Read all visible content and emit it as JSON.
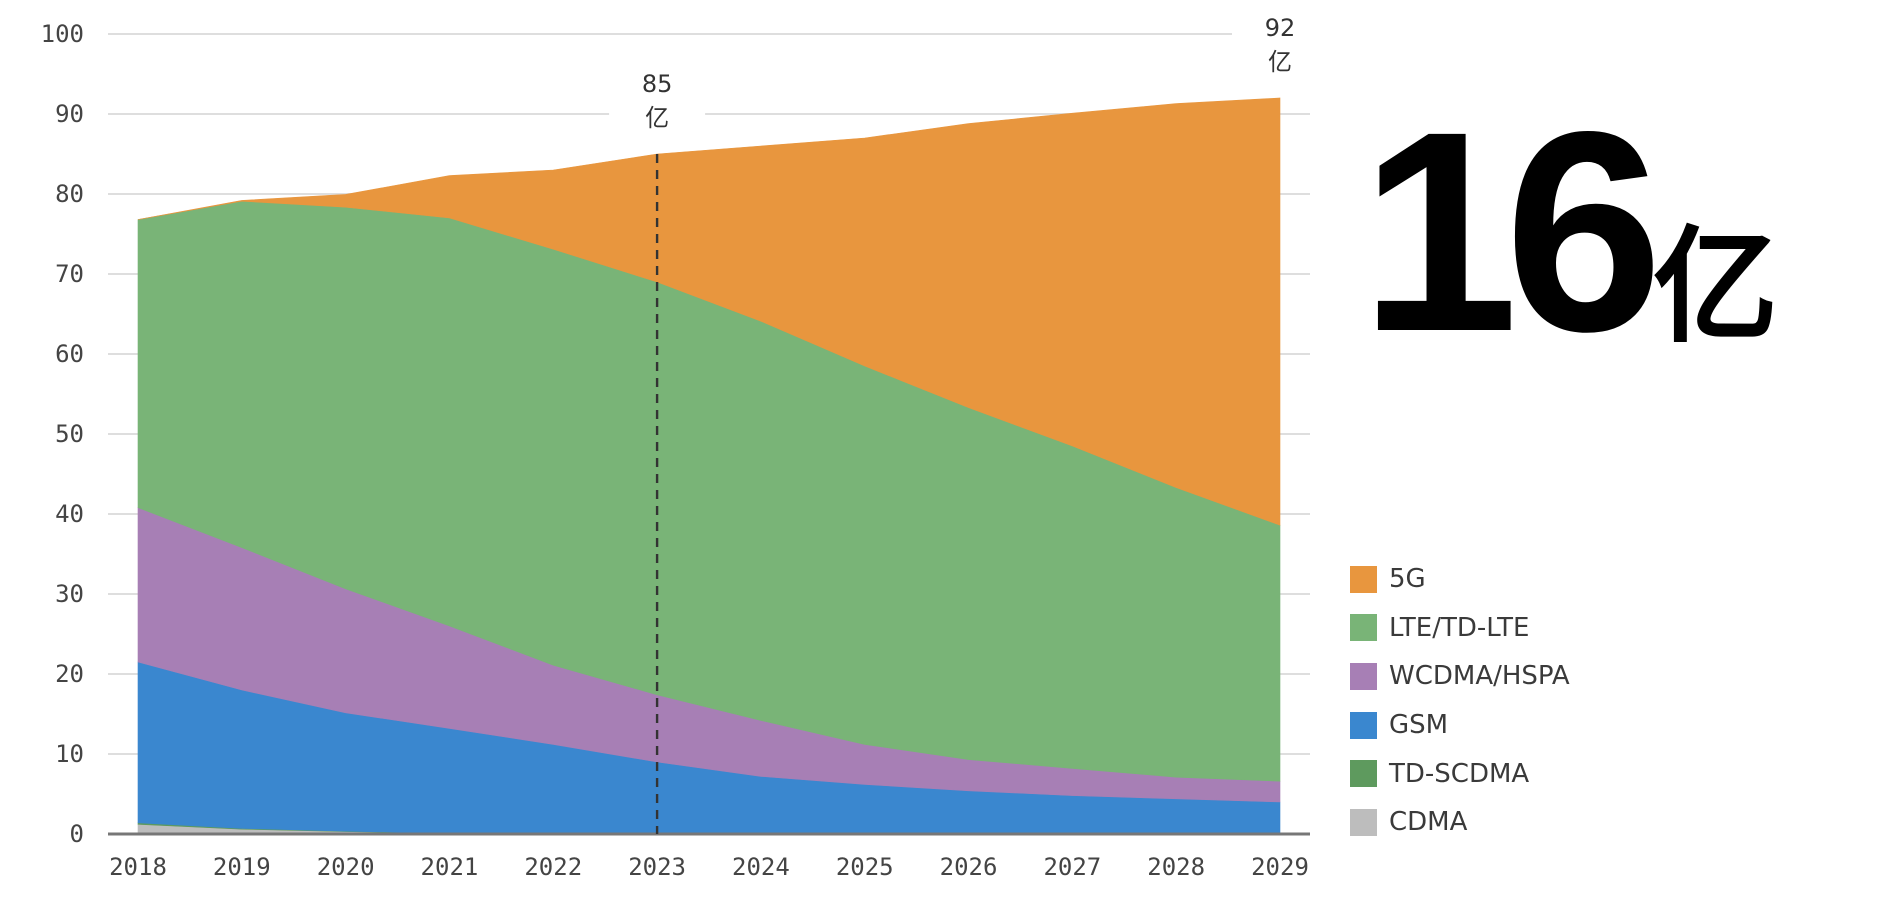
{
  "chart_data": {
    "type": "area",
    "stacked": true,
    "x": [
      2018,
      2019,
      2020,
      2021,
      2022,
      2023,
      2024,
      2025,
      2026,
      2027,
      2028,
      2029
    ],
    "ylim": [
      0,
      100
    ],
    "yticks": [
      0,
      10,
      20,
      30,
      40,
      50,
      60,
      70,
      80,
      90,
      100
    ],
    "series": [
      {
        "name": "CDMA",
        "color": "#bdbdbd",
        "values": [
          1.2,
          0.6,
          0.3,
          0.1,
          0.1,
          0,
          0,
          0,
          0,
          0,
          0,
          0
        ]
      },
      {
        "name": "TD-SCDMA",
        "color": "#5e9a5e",
        "values": [
          0.2,
          0.1,
          0.05,
          0,
          0,
          0,
          0,
          0,
          0,
          0,
          0,
          0
        ]
      },
      {
        "name": "GSM",
        "color": "#3a87cf",
        "values": [
          20.1,
          17.3,
          14.8,
          13.1,
          11.1,
          9.0,
          7.2,
          6.2,
          5.4,
          4.8,
          4.4,
          4.0
        ]
      },
      {
        "name": "WCDMA/HSPA",
        "color": "#a77fb5",
        "values": [
          19.3,
          17.8,
          15.5,
          12.8,
          9.9,
          8.4,
          7.0,
          5.0,
          3.9,
          3.4,
          2.7,
          2.6
        ]
      },
      {
        "name": "LTE/TD-LTE",
        "color": "#79b477",
        "values": [
          36.0,
          43.3,
          47.7,
          51.0,
          52.0,
          51.6,
          49.9,
          47.3,
          44.0,
          40.3,
          36.2,
          32.0
        ]
      },
      {
        "name": "5G",
        "color": "#e8963e",
        "values": [
          0,
          0.1,
          1.6,
          5.3,
          9.9,
          16.0,
          21.9,
          28.5,
          35.5,
          41.6,
          48.0,
          53.4
        ]
      }
    ],
    "annotations": [
      {
        "x": 2023,
        "label_top": "85",
        "label_bottom": "亿",
        "dashed_line": true
      },
      {
        "x": 2029,
        "label_top": "92",
        "label_bottom": "亿"
      }
    ],
    "legend_order": [
      "5G",
      "LTE/TD-LTE",
      "WCDMA/HSPA",
      "GSM",
      "TD-SCDMA",
      "CDMA"
    ],
    "legend_position": "bottom-right"
  },
  "headline": {
    "number": "16",
    "unit": "亿"
  }
}
